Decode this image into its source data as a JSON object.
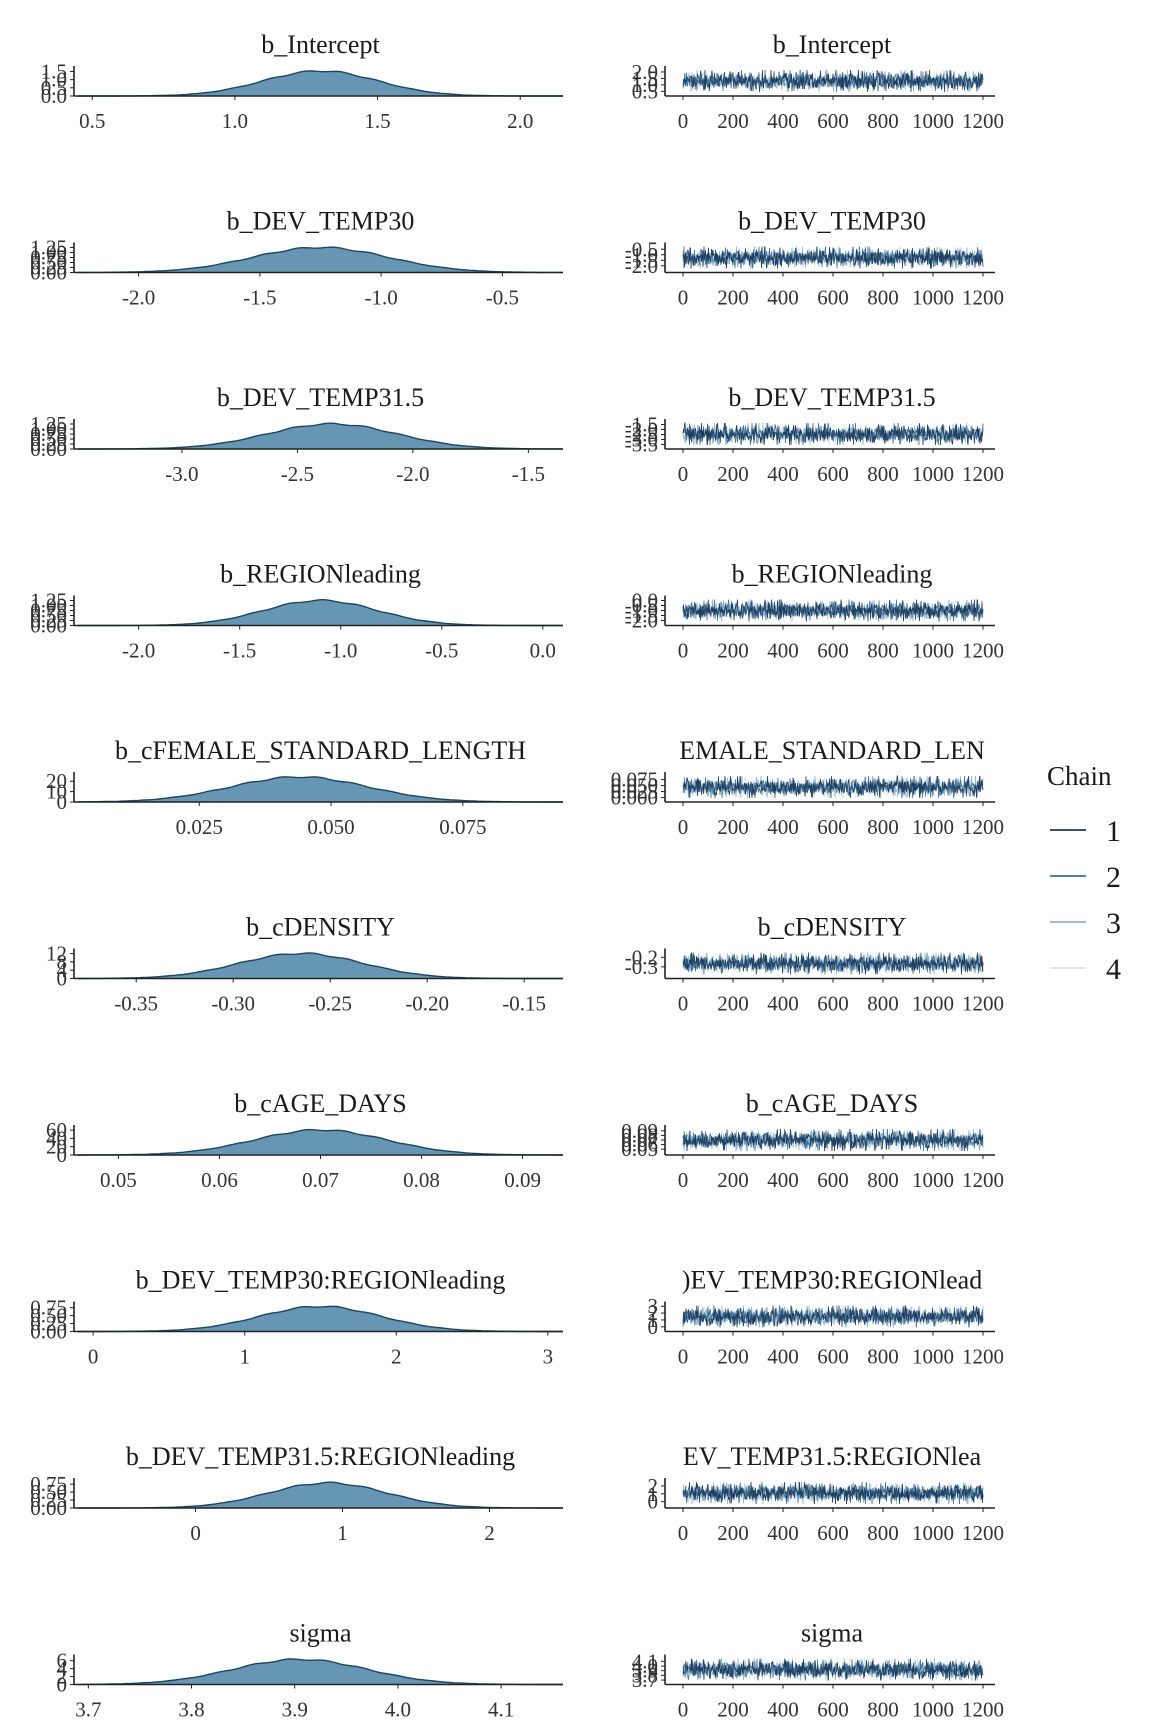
{
  "chart_data": {
    "type": "mcmc_trace_density",
    "legend": {
      "title": "Chain",
      "placement": "right",
      "entries": [
        {
          "label": "1",
          "color": "#1b3a5c"
        },
        {
          "label": "2",
          "color": "#3e6f93"
        },
        {
          "label": "3",
          "color": "#8db3cf"
        },
        {
          "label": "4",
          "color": "#d7e6f1"
        }
      ]
    },
    "density_fill_color": "#6796b3",
    "density_line_color": "#1b4566",
    "iterations": 1200,
    "parameters": [
      {
        "name": "b_Intercept",
        "trace_title": "b_Intercept",
        "density": {
          "xlim": [
            0.45,
            2.15
          ],
          "xticks": [
            "0.5",
            "1.0",
            "1.5",
            "2.0"
          ],
          "yticks": [
            "0.0",
            "0.5",
            "1.0",
            "1.5"
          ],
          "ymax": 1.65,
          "mean": 1.3,
          "sd": 0.2
        },
        "trace": {
          "yticks": [
            "0.5",
            "1.0",
            "1.5",
            "2.0"
          ],
          "ylim": [
            0.45,
            2.15
          ],
          "xticks": [
            "0",
            "200",
            "400",
            "600",
            "800",
            "1000",
            "1200"
          ]
        }
      },
      {
        "name": "b_DEV_TEMP30",
        "trace_title": "b_DEV_TEMP30",
        "density": {
          "xlim": [
            -2.25,
            -0.25
          ],
          "xticks": [
            "-2.0",
            "-1.5",
            "-1.0",
            "-0.5"
          ],
          "yticks": [
            "0.00",
            "0.25",
            "0.50",
            "0.75",
            "1.00",
            "1.25"
          ],
          "ymax": 1.35,
          "mean": -1.25,
          "sd": 0.28
        },
        "trace": {
          "yticks": [
            "-2.0",
            "-1.5",
            "-1.0",
            "-0.5"
          ],
          "ylim": [
            -2.25,
            -0.25
          ],
          "xticks": [
            "0",
            "200",
            "400",
            "600",
            "800",
            "1000",
            "1200"
          ]
        }
      },
      {
        "name": "b_DEV_TEMP31.5",
        "trace_title": "b_DEV_TEMP31.5",
        "density": {
          "xlim": [
            -3.45,
            -1.35
          ],
          "xticks": [
            "-3.0",
            "-2.5",
            "-2.0",
            "-1.5"
          ],
          "yticks": [
            "0.00",
            "0.25",
            "0.50",
            "0.75",
            "1.00",
            "1.25"
          ],
          "ymax": 1.35,
          "mean": -2.35,
          "sd": 0.28
        },
        "trace": {
          "yticks": [
            "-3.5",
            "-3.0",
            "-2.5",
            "-2.0",
            "-1.5"
          ],
          "ylim": [
            -3.55,
            -1.35
          ],
          "xticks": [
            "0",
            "200",
            "400",
            "600",
            "800",
            "1000",
            "1200"
          ]
        }
      },
      {
        "name": "b_REGIONleading",
        "trace_title": "b_REGIONleading",
        "density": {
          "xlim": [
            -2.3,
            0.1
          ],
          "xticks": [
            "-2.0",
            "-1.5",
            "-1.0",
            "-0.5",
            "0.0"
          ],
          "yticks": [
            "0.00",
            "0.25",
            "0.50",
            "0.75",
            "1.00",
            "1.25"
          ],
          "ymax": 1.35,
          "mean": -1.1,
          "sd": 0.28
        },
        "trace": {
          "yticks": [
            "-2.0",
            "-1.5",
            "-1.0",
            "-0.5",
            "0.0"
          ],
          "ylim": [
            -2.1,
            0.1
          ],
          "xticks": [
            "0",
            "200",
            "400",
            "600",
            "800",
            "1000",
            "1200"
          ]
        }
      },
      {
        "name": "b_cFEMALE_STANDARD_LENGTH",
        "trace_title": "EMALE_STANDARD_LEN",
        "density": {
          "xlim": [
            0.002,
            0.094
          ],
          "xticks": [
            "0.025",
            "0.050",
            "0.075"
          ],
          "yticks": [
            "0",
            "10",
            "20"
          ],
          "ymax": 26,
          "mean": 0.044,
          "sd": 0.013
        },
        "trace": {
          "yticks": [
            "0.000",
            "0.025",
            "0.050",
            "0.075"
          ],
          "ylim": [
            -0.002,
            0.09
          ],
          "xticks": [
            "0",
            "200",
            "400",
            "600",
            "800",
            "1000",
            "1200"
          ]
        }
      },
      {
        "name": "b_cDENSITY",
        "trace_title": "b_cDENSITY",
        "density": {
          "xlim": [
            -0.38,
            -0.13
          ],
          "xticks": [
            "-0.35",
            "-0.30",
            "-0.25",
            "-0.20",
            "-0.15"
          ],
          "yticks": [
            "0",
            "4",
            "8",
            "12"
          ],
          "ymax": 13,
          "mean": -0.265,
          "sd": 0.032
        },
        "trace": {
          "yticks": [
            "-0.3",
            "-0.2"
          ],
          "ylim": [
            -0.38,
            -0.15
          ],
          "xticks": [
            "0",
            "200",
            "400",
            "600",
            "800",
            "1000",
            "1200"
          ]
        }
      },
      {
        "name": "b_cAGE_DAYS",
        "trace_title": "b_cAGE_DAYS",
        "density": {
          "xlim": [
            0.046,
            0.094
          ],
          "xticks": [
            "0.05",
            "0.06",
            "0.07",
            "0.08",
            "0.09"
          ],
          "yticks": [
            "0",
            "20",
            "40",
            "60"
          ],
          "ymax": 65,
          "mean": 0.07,
          "sd": 0.0065
        },
        "trace": {
          "yticks": [
            "0.05",
            "0.06",
            "0.07",
            "0.08",
            "0.09"
          ],
          "ylim": [
            0.046,
            0.094
          ],
          "xticks": [
            "0",
            "200",
            "400",
            "600",
            "800",
            "1000",
            "1200"
          ]
        }
      },
      {
        "name": "b_DEV_TEMP30:REGIONleading",
        "trace_title": ")EV_TEMP30:REGIONlead",
        "density": {
          "xlim": [
            -0.1,
            3.1
          ],
          "xticks": [
            "0",
            "1",
            "2",
            "3"
          ],
          "yticks": [
            "0.00",
            "0.25",
            "0.50",
            "0.75"
          ],
          "ymax": 0.85,
          "mean": 1.5,
          "sd": 0.4
        },
        "trace": {
          "yticks": [
            "0",
            "1",
            "2",
            "3"
          ],
          "ylim": [
            -0.1,
            3.1
          ],
          "xticks": [
            "0",
            "200",
            "400",
            "600",
            "800",
            "1000",
            "1200"
          ]
        }
      },
      {
        "name": "b_DEV_TEMP31.5:REGIONleading",
        "trace_title": "EV_TEMP31.5:REGIONlea",
        "density": {
          "xlim": [
            -0.8,
            2.5
          ],
          "xticks": [
            "0",
            "1",
            "2"
          ],
          "yticks": [
            "0.00",
            "0.25",
            "0.50",
            "0.75"
          ],
          "ymax": 0.85,
          "mean": 0.9,
          "sd": 0.4
        },
        "trace": {
          "yticks": [
            "0",
            "1",
            "2"
          ],
          "ylim": [
            -0.3,
            2.5
          ],
          "xticks": [
            "0",
            "200",
            "400",
            "600",
            "800",
            "1000",
            "1200"
          ]
        }
      },
      {
        "name": "sigma",
        "trace_title": "sigma",
        "density": {
          "xlim": [
            3.69,
            4.16
          ],
          "xticks": [
            "3.7",
            "3.8",
            "3.9",
            "4.0",
            "4.1"
          ],
          "yticks": [
            "0",
            "2",
            "4",
            "6"
          ],
          "ymax": 6.8,
          "mean": 3.905,
          "sd": 0.065
        },
        "trace": {
          "yticks": [
            "3.7",
            "3.8",
            "3.9",
            "4.0",
            "4.1"
          ],
          "ylim": [
            3.69,
            4.16
          ],
          "xticks": [
            "0",
            "200",
            "400",
            "600",
            "800",
            "1000",
            "1200"
          ]
        }
      }
    ]
  }
}
